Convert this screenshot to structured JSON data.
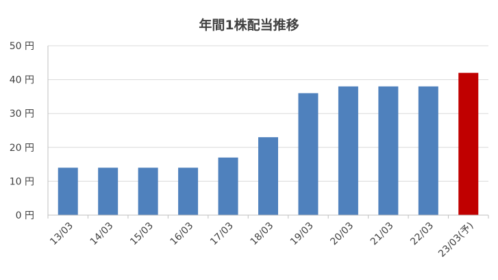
{
  "chart_data": {
    "type": "bar",
    "title": "年間1株配当推移",
    "categories": [
      "13/03",
      "14/03",
      "15/03",
      "16/03",
      "17/03",
      "18/03",
      "19/03",
      "20/03",
      "21/03",
      "22/03",
      "23/03(予)"
    ],
    "values": [
      14,
      14,
      14,
      14,
      17,
      23,
      36,
      38,
      38,
      38,
      42
    ],
    "y_tick_labels": [
      "0 円",
      "10 円",
      "20 円",
      "30 円",
      "40 円",
      "50 円"
    ],
    "y_ticks": [
      0,
      10,
      20,
      30,
      40,
      50
    ],
    "ylim": [
      0,
      50
    ],
    "grid": true,
    "colors": {
      "default_bar": "#4f81bd",
      "highlight_bar": "#c00000",
      "grid": "#d9d9d9",
      "axis": "#bfbfbf"
    },
    "highlight_index": 10
  }
}
